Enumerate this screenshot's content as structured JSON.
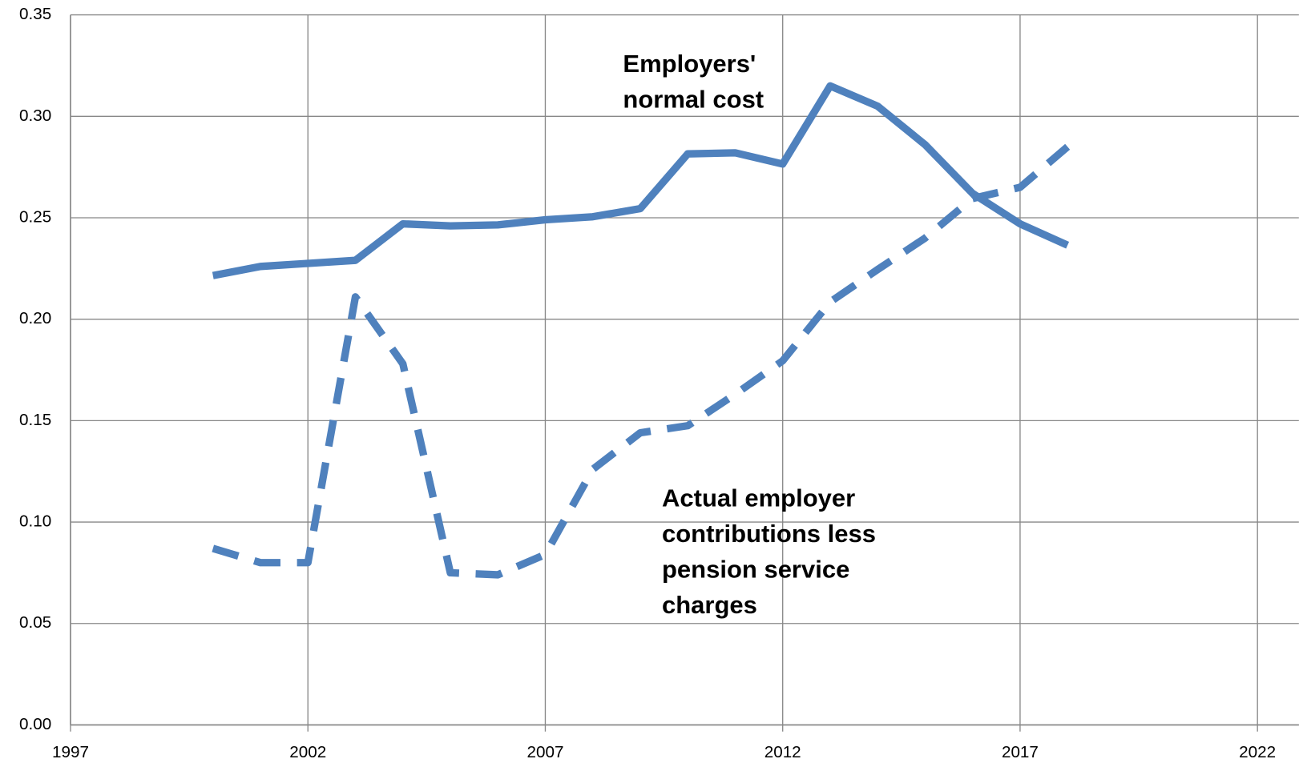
{
  "chart_data": {
    "type": "line",
    "x": [
      2000,
      2001,
      2002,
      2003,
      2004,
      2005,
      2006,
      2007,
      2008,
      2009,
      2010,
      2011,
      2012,
      2013,
      2014,
      2015,
      2016,
      2017,
      2018
    ],
    "series": [
      {
        "color": "#4f81bd",
        "style": "solid",
        "label": [
          "Employers'",
          "normal cost"
        ],
        "values": [
          0.2215,
          0.226,
          0.2275,
          0.229,
          0.247,
          0.246,
          0.2465,
          0.249,
          0.2505,
          0.2545,
          0.2815,
          0.282,
          0.2765,
          0.315,
          0.305,
          0.286,
          0.262,
          0.247,
          0.2365
        ]
      },
      {
        "color": "#4f81bd",
        "style": "dashed",
        "label": [
          "Actual employer",
          "contributions less",
          "pension service",
          "charges"
        ],
        "values": [
          0.087,
          0.08,
          0.08,
          0.211,
          0.178,
          0.075,
          0.074,
          0.084,
          0.126,
          0.144,
          0.1475,
          0.163,
          0.1795,
          0.2085,
          0.2245,
          0.24,
          0.2595,
          0.265,
          0.285
        ]
      }
    ],
    "xlim": [
      1997,
      2022
    ],
    "xticks": [
      1997,
      2002,
      2007,
      2012,
      2017,
      2022
    ],
    "ylim": [
      0,
      0.35
    ],
    "yticks": [
      {
        "value": 0,
        "label": "0.00"
      },
      0.05,
      {
        "value": 0.1,
        "label": "0.10"
      },
      0.15,
      {
        "value": 0.2,
        "label": "0.20"
      },
      0.25,
      {
        "value": 0.3,
        "label": "0.30"
      },
      0.35
    ],
    "grid": true
  }
}
